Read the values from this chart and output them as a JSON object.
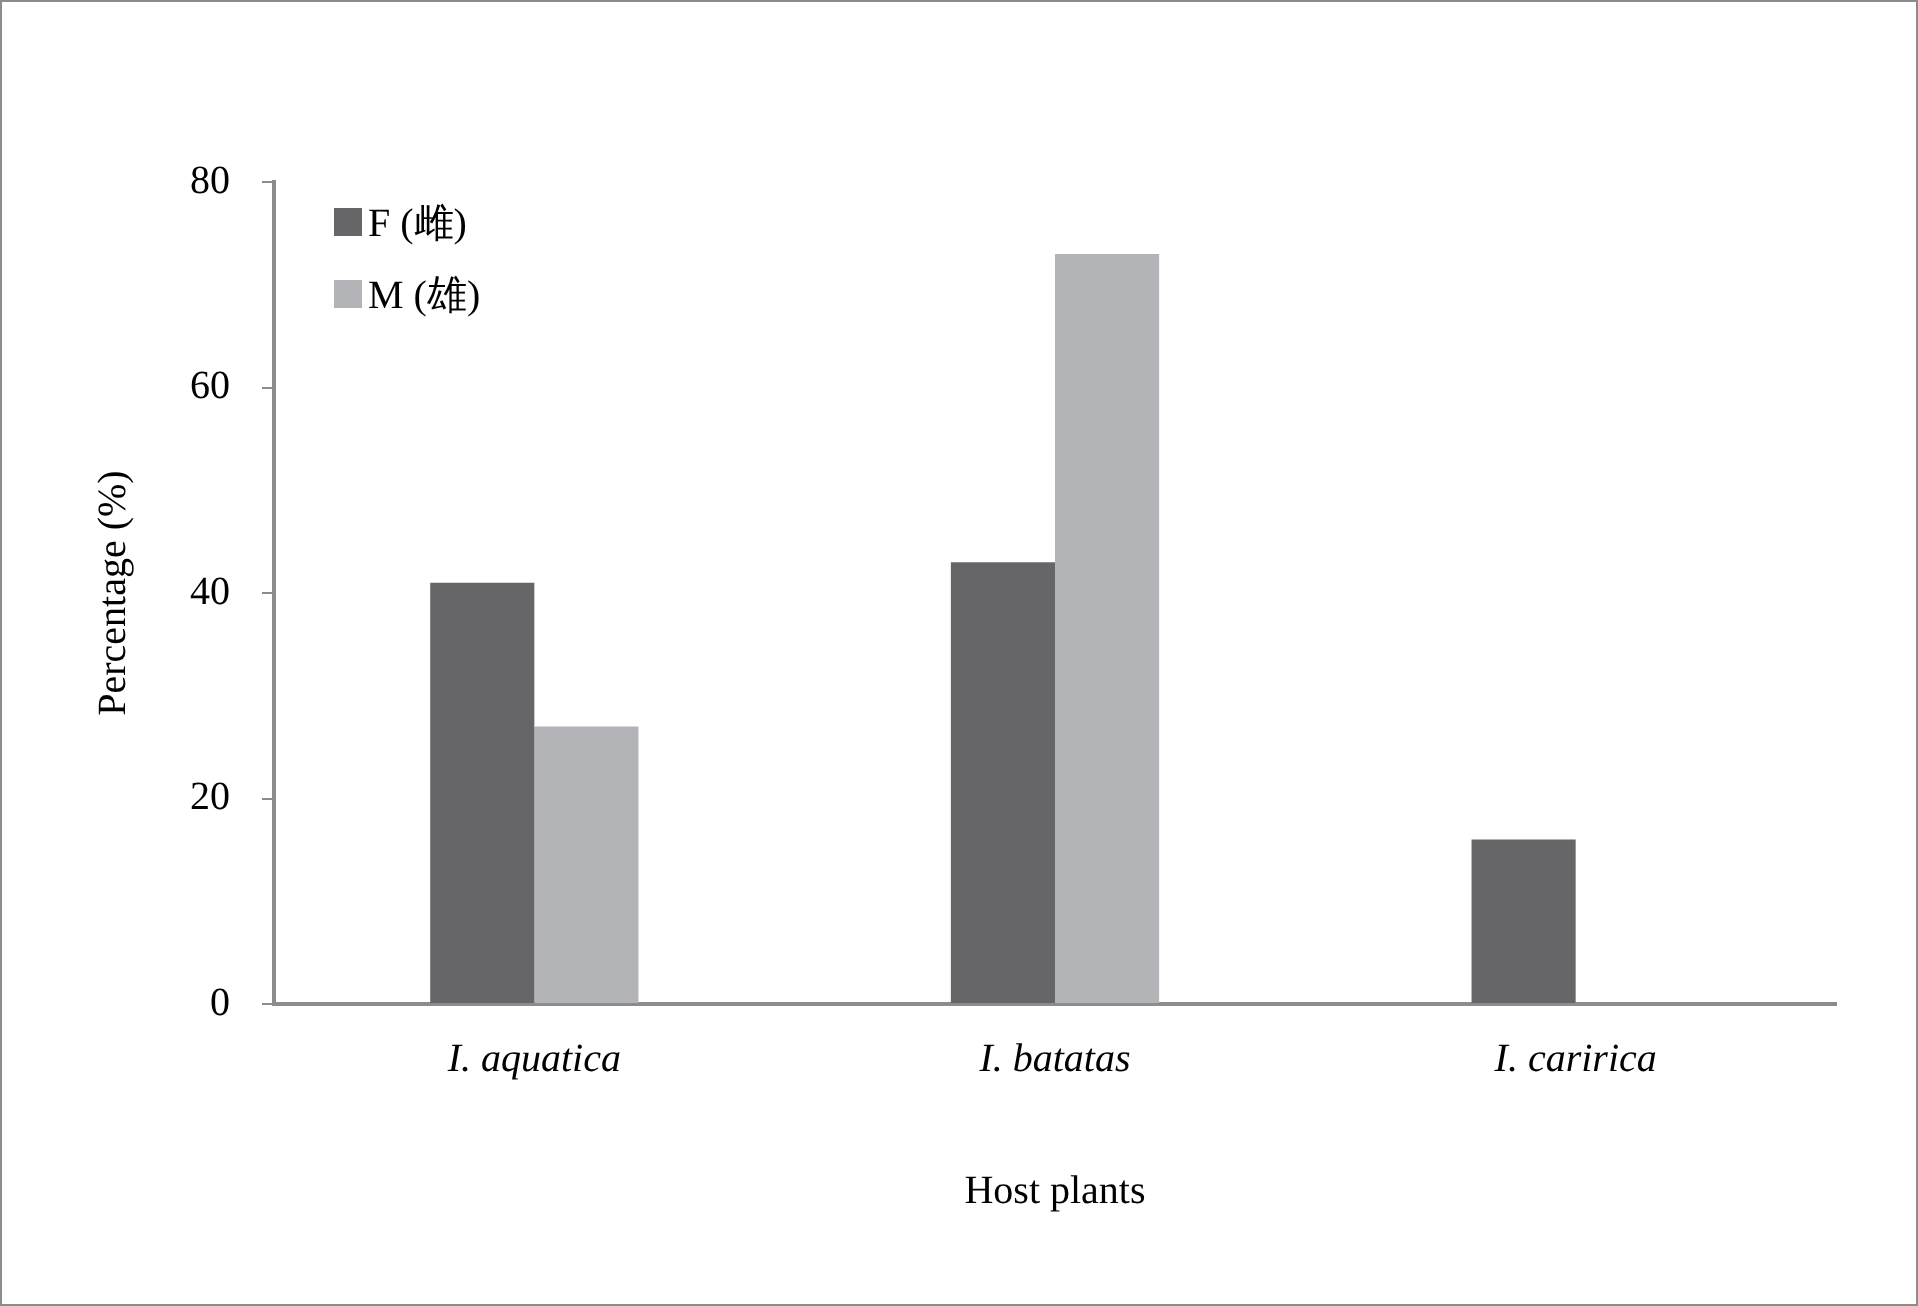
{
  "chart_data": {
    "type": "bar",
    "xlabel": "Host plants",
    "ylabel": "Percentage (%)",
    "categories": [
      "I. aquatica",
      "I. batatas",
      "I. caririca"
    ],
    "series": [
      {
        "name": "F (雌)",
        "color": "#666669",
        "values": [
          41,
          43,
          16
        ]
      },
      {
        "name": "M (雄)",
        "color": "#b3b4b8",
        "values": [
          27,
          73,
          0
        ]
      }
    ],
    "ylim": [
      0,
      80
    ],
    "yticks": [
      0,
      20,
      40,
      60,
      80
    ],
    "grid": false,
    "legend": "top left"
  }
}
